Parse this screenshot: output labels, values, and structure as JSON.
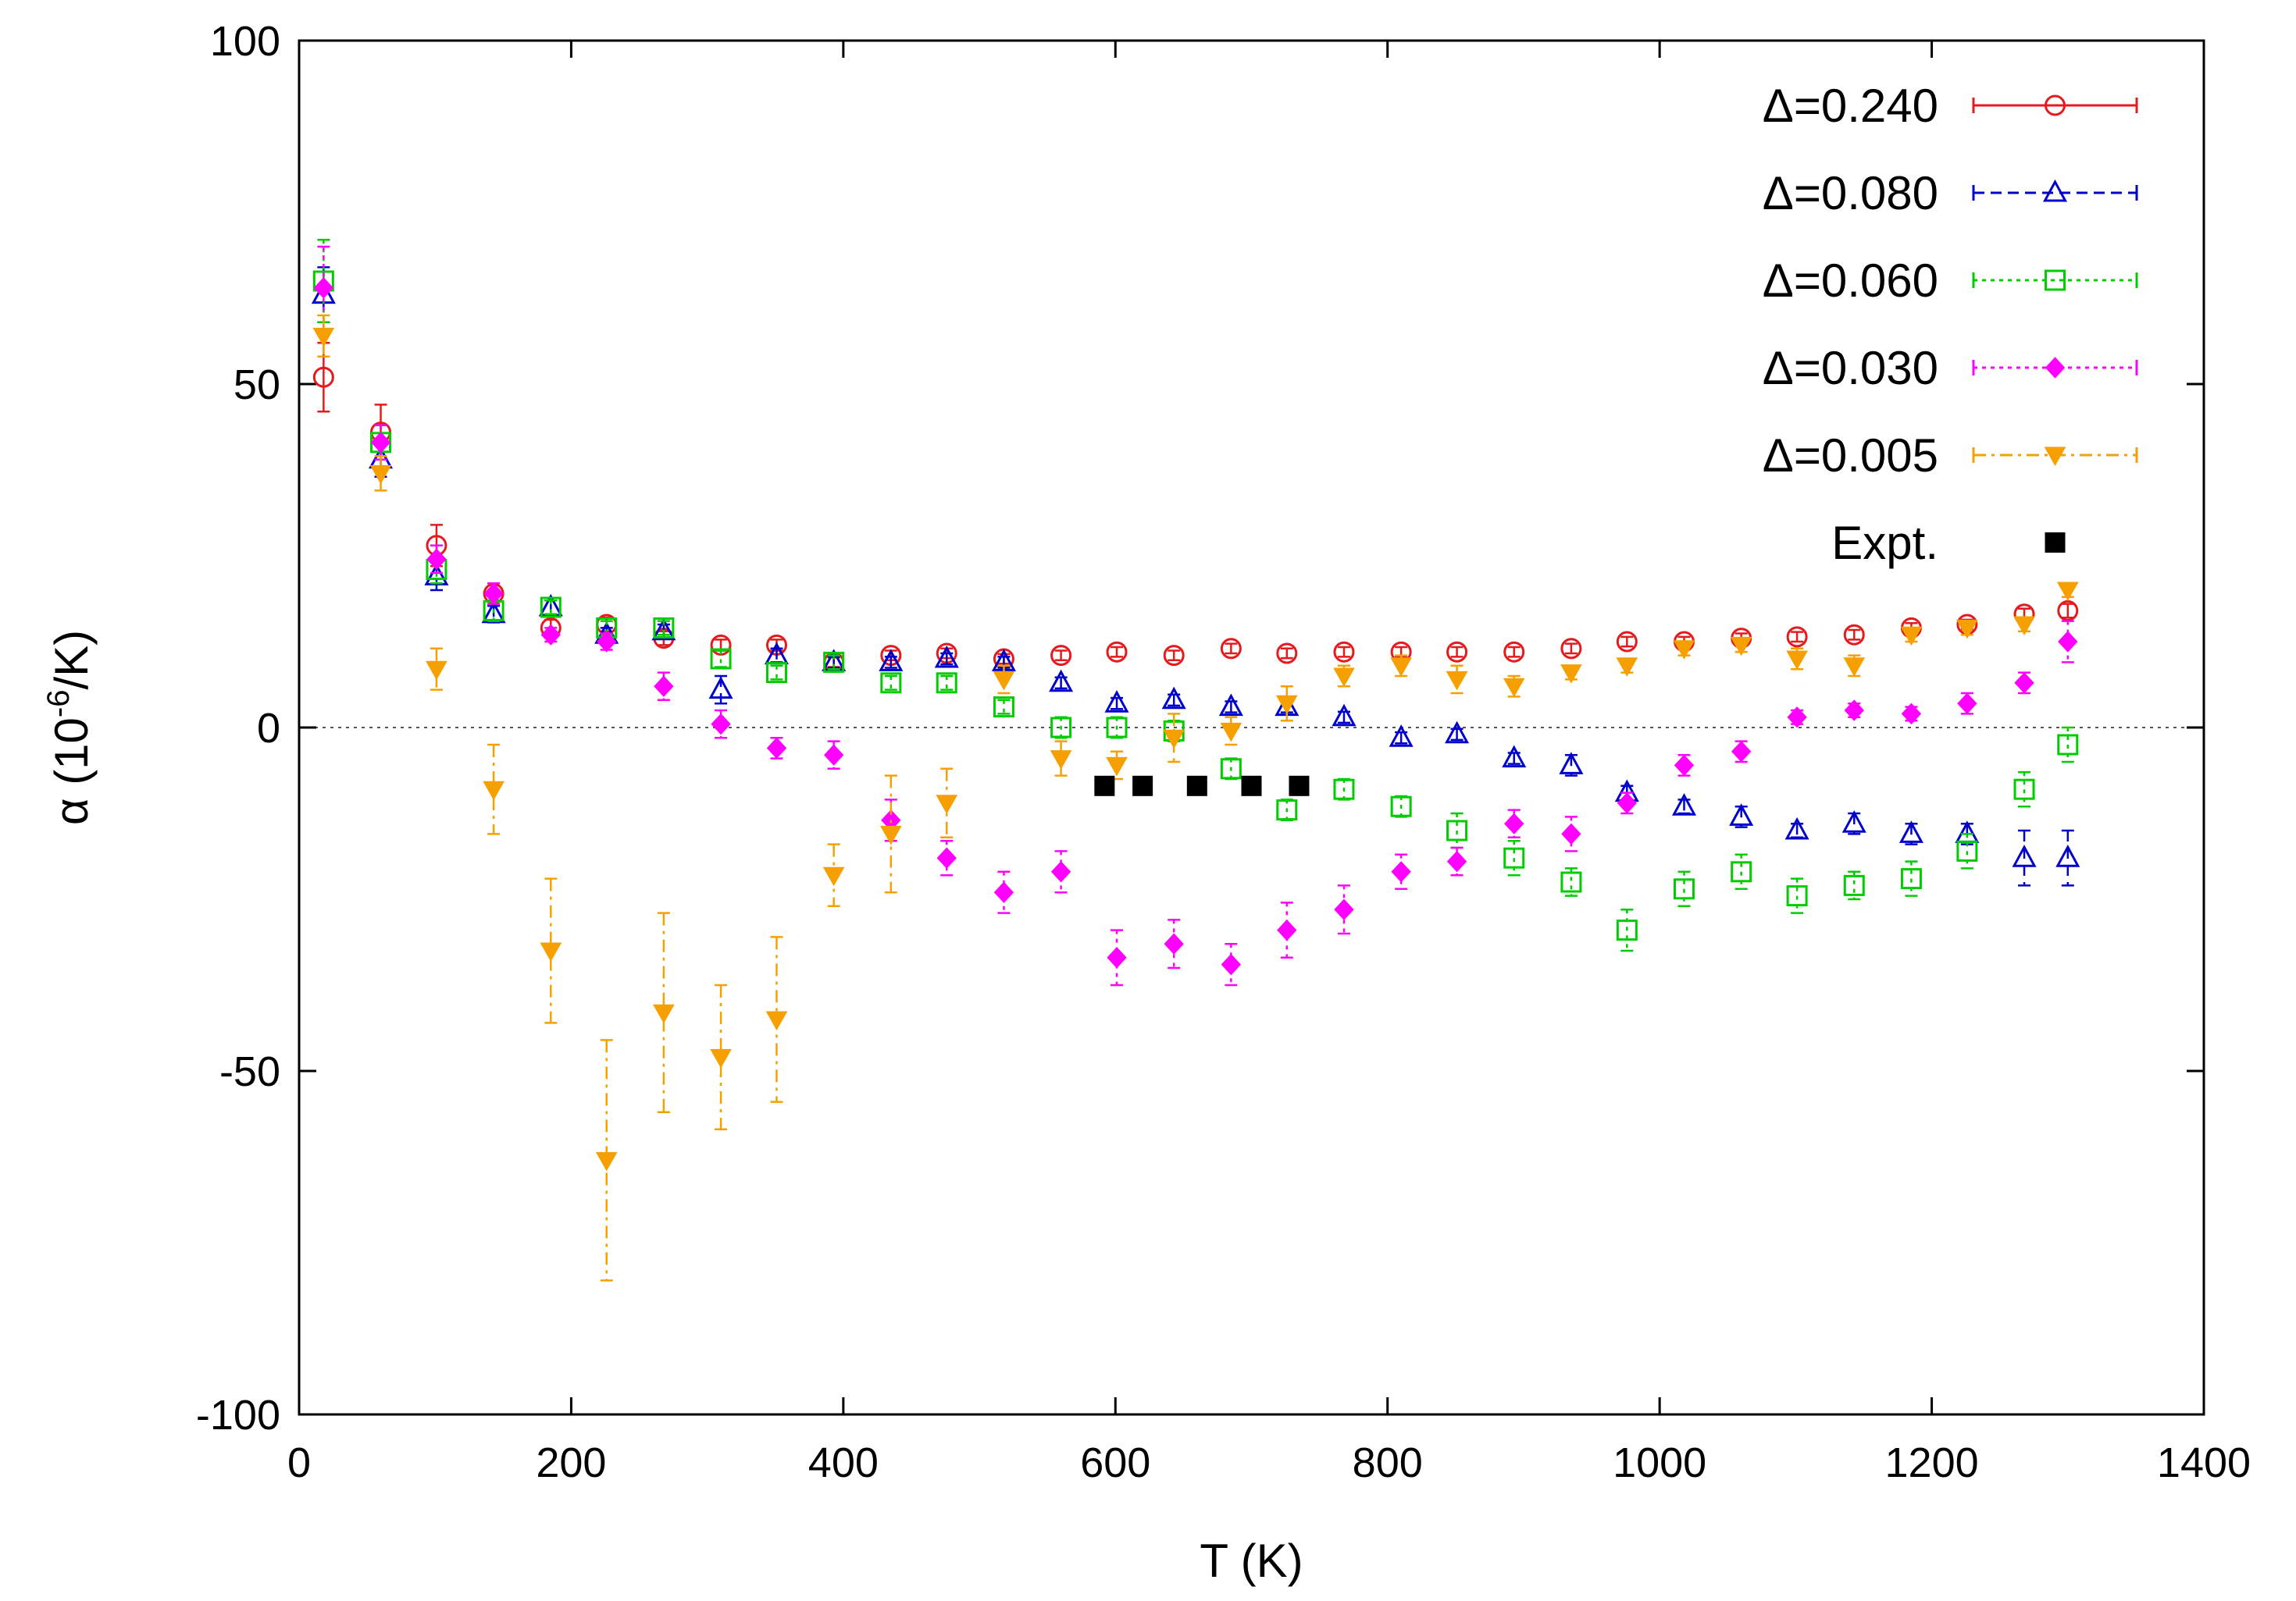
{
  "chart_data": {
    "type": "scatter",
    "title": "",
    "xlabel": "T (K)",
    "ylabel_prefix": "α (10",
    "ylabel_exp": "-6",
    "ylabel_suffix": "/K)",
    "xlim": [
      0,
      1400
    ],
    "ylim": [
      -100,
      100
    ],
    "xticks": [
      0,
      200,
      400,
      600,
      800,
      1000,
      1200,
      1400
    ],
    "yticks": [
      -100,
      -50,
      0,
      50,
      100
    ],
    "zero_line": true,
    "legend_position": "top-right",
    "series": [
      {
        "name": "Δ=0.240",
        "color": "#e41a1c",
        "marker": "open-circle",
        "line": "solid",
        "points": [
          [
            18,
            51,
            5
          ],
          [
            60,
            43,
            4
          ],
          [
            101,
            26.5,
            3
          ],
          [
            143,
            19.5,
            1.5
          ],
          [
            185,
            14.5,
            1.2
          ],
          [
            226,
            15,
            1
          ],
          [
            268,
            13,
            1
          ],
          [
            310,
            12,
            0.8
          ],
          [
            351,
            12,
            0.8
          ],
          [
            393,
            9.5,
            0.7
          ],
          [
            435,
            10.5,
            0.7
          ],
          [
            476,
            10.8,
            0.7
          ],
          [
            518,
            10,
            0.7
          ],
          [
            560,
            10.5,
            0.7
          ],
          [
            601,
            11,
            0.7
          ],
          [
            643,
            10.5,
            0.7
          ],
          [
            685,
            11.5,
            0.7
          ],
          [
            726,
            10.8,
            0.7
          ],
          [
            768,
            11,
            0.7
          ],
          [
            810,
            11,
            0.7
          ],
          [
            851,
            11,
            0.7
          ],
          [
            893,
            11,
            0.7
          ],
          [
            935,
            11.5,
            0.7
          ],
          [
            976,
            12.5,
            0.7
          ],
          [
            1018,
            12.5,
            0.7
          ],
          [
            1060,
            13,
            0.7
          ],
          [
            1101,
            13.2,
            0.7
          ],
          [
            1143,
            13.5,
            0.7
          ],
          [
            1185,
            14.5,
            0.7
          ],
          [
            1226,
            15,
            0.7
          ],
          [
            1268,
            16.5,
            0.8
          ],
          [
            1300,
            17,
            1
          ]
        ]
      },
      {
        "name": "Δ=0.080",
        "color": "#0000cc",
        "marker": "open-triangle",
        "line": "dashed",
        "points": [
          [
            18,
            63,
            4
          ],
          [
            60,
            39,
            2.5
          ],
          [
            101,
            22,
            2
          ],
          [
            143,
            16.5,
            1.2
          ],
          [
            185,
            17.5,
            1
          ],
          [
            226,
            13.5,
            1
          ],
          [
            268,
            14,
            1
          ],
          [
            310,
            5.5,
            2
          ],
          [
            351,
            10.5,
            1
          ],
          [
            393,
            9.5,
            0.8
          ],
          [
            435,
            9.5,
            0.8
          ],
          [
            476,
            10,
            0.8
          ],
          [
            518,
            9.5,
            0.8
          ],
          [
            560,
            6.5,
            0.8
          ],
          [
            601,
            3.5,
            0.8
          ],
          [
            643,
            4,
            0.8
          ],
          [
            685,
            3,
            0.8
          ],
          [
            726,
            3,
            0.8
          ],
          [
            768,
            1.5,
            0.8
          ],
          [
            810,
            -1.5,
            0.8
          ],
          [
            851,
            -1,
            0.8
          ],
          [
            893,
            -4.5,
            0.8
          ],
          [
            935,
            -5.5,
            1.5
          ],
          [
            976,
            -9.5,
            1
          ],
          [
            1018,
            -11.5,
            1
          ],
          [
            1060,
            -13,
            1.5
          ],
          [
            1101,
            -15,
            1
          ],
          [
            1143,
            -14,
            1.5
          ],
          [
            1185,
            -15.5,
            1.5
          ],
          [
            1226,
            -15.5,
            1.5
          ],
          [
            1268,
            -19,
            4
          ],
          [
            1300,
            -19,
            4
          ]
        ]
      },
      {
        "name": "Δ=0.060",
        "color": "#00cc00",
        "marker": "open-square",
        "line": "dotted",
        "points": [
          [
            18,
            65,
            6
          ],
          [
            60,
            41.5,
            2.5
          ],
          [
            101,
            23,
            2
          ],
          [
            143,
            17,
            1.5
          ],
          [
            185,
            17.5,
            1
          ],
          [
            226,
            14.5,
            1
          ],
          [
            268,
            14.5,
            1
          ],
          [
            310,
            10,
            1.2
          ],
          [
            351,
            8,
            1
          ],
          [
            393,
            9.5,
            1
          ],
          [
            435,
            6.5,
            1
          ],
          [
            476,
            6.5,
            1
          ],
          [
            518,
            3,
            1
          ],
          [
            560,
            0,
            1.5
          ],
          [
            601,
            0,
            1.5
          ],
          [
            643,
            -0.5,
            1.5
          ],
          [
            685,
            -6,
            1.5
          ],
          [
            726,
            -12,
            1.5
          ],
          [
            768,
            -9,
            1.5
          ],
          [
            810,
            -11.5,
            1.5
          ],
          [
            851,
            -15,
            2.5
          ],
          [
            893,
            -19,
            2.5
          ],
          [
            935,
            -22.5,
            2
          ],
          [
            976,
            -29.5,
            3
          ],
          [
            1018,
            -23.5,
            2.5
          ],
          [
            1060,
            -21,
            2.5
          ],
          [
            1101,
            -24.5,
            2.5
          ],
          [
            1143,
            -23,
            2
          ],
          [
            1185,
            -22,
            2.5
          ],
          [
            1226,
            -18,
            2.5
          ],
          [
            1268,
            -9,
            2.5
          ],
          [
            1300,
            -2.5,
            2.5
          ]
        ]
      },
      {
        "name": "Δ=0.030",
        "color": "#ff00ff",
        "marker": "filled-diamond",
        "line": "dotted",
        "points": [
          [
            18,
            64,
            6
          ],
          [
            60,
            41.5,
            2.5
          ],
          [
            101,
            24.5,
            2
          ],
          [
            143,
            19.5,
            1.5
          ],
          [
            185,
            13.5,
            1
          ],
          [
            226,
            12.5,
            1.2
          ],
          [
            268,
            6,
            2
          ],
          [
            310,
            0.5,
            2
          ],
          [
            351,
            -3,
            1.5
          ],
          [
            393,
            -4,
            2
          ],
          [
            435,
            -13.5,
            3
          ],
          [
            476,
            -19,
            2.5
          ],
          [
            518,
            -24,
            3
          ],
          [
            560,
            -21,
            3
          ],
          [
            601,
            -33.5,
            4
          ],
          [
            643,
            -31.5,
            3.5
          ],
          [
            685,
            -34.5,
            3
          ],
          [
            726,
            -29.5,
            4
          ],
          [
            768,
            -26.5,
            3.5
          ],
          [
            810,
            -21,
            2.5
          ],
          [
            851,
            -19.5,
            2
          ],
          [
            893,
            -14,
            2
          ],
          [
            935,
            -15.5,
            2.5
          ],
          [
            976,
            -11,
            1.5
          ],
          [
            1018,
            -5.5,
            1.5
          ],
          [
            1060,
            -3.5,
            1.5
          ],
          [
            1101,
            1.5,
            1
          ],
          [
            1143,
            2.5,
            1
          ],
          [
            1185,
            2,
            1
          ],
          [
            1226,
            3.5,
            1.5
          ],
          [
            1268,
            6.5,
            1.5
          ],
          [
            1300,
            12.5,
            3
          ]
        ]
      },
      {
        "name": "Δ=0.005",
        "color": "#f5a000",
        "marker": "filled-triangle-down",
        "line": "dashdot",
        "points": [
          [
            18,
            57,
            3
          ],
          [
            60,
            37,
            2.5
          ],
          [
            101,
            8.5,
            3
          ],
          [
            143,
            -9,
            6.5
          ],
          [
            185,
            -32.5,
            10.5
          ],
          [
            226,
            -63,
            17.5
          ],
          [
            268,
            -41.5,
            14.5
          ],
          [
            310,
            -48,
            10.5
          ],
          [
            351,
            -42.5,
            12
          ],
          [
            393,
            -21.5,
            4.5
          ],
          [
            435,
            -15.5,
            8.5
          ],
          [
            476,
            -11,
            5
          ],
          [
            518,
            7,
            2
          ],
          [
            560,
            -4.5,
            2.5
          ],
          [
            601,
            -5.5,
            2
          ],
          [
            643,
            -1.5,
            3.5
          ],
          [
            685,
            -0.5,
            2
          ],
          [
            726,
            3.5,
            2.5
          ],
          [
            768,
            7.5,
            1.5
          ],
          [
            810,
            9,
            1.5
          ],
          [
            851,
            7,
            2
          ],
          [
            893,
            6,
            1.5
          ],
          [
            935,
            8,
            1
          ],
          [
            976,
            9,
            1
          ],
          [
            1018,
            11.5,
            1
          ],
          [
            1060,
            12,
            1
          ],
          [
            1101,
            10,
            1.5
          ],
          [
            1143,
            9,
            1.5
          ],
          [
            1185,
            13.5,
            1
          ],
          [
            1226,
            14.5,
            1
          ],
          [
            1268,
            15,
            1
          ],
          [
            1300,
            20,
            1
          ]
        ]
      },
      {
        "name": "Expt.",
        "color": "#000000",
        "marker": "filled-square",
        "line": "none",
        "points": [
          [
            592,
            -8.5,
            0
          ],
          [
            620,
            -8.5,
            0
          ],
          [
            660,
            -8.5,
            0
          ],
          [
            700,
            -8.5,
            0
          ],
          [
            735,
            -8.5,
            0
          ]
        ]
      }
    ]
  }
}
